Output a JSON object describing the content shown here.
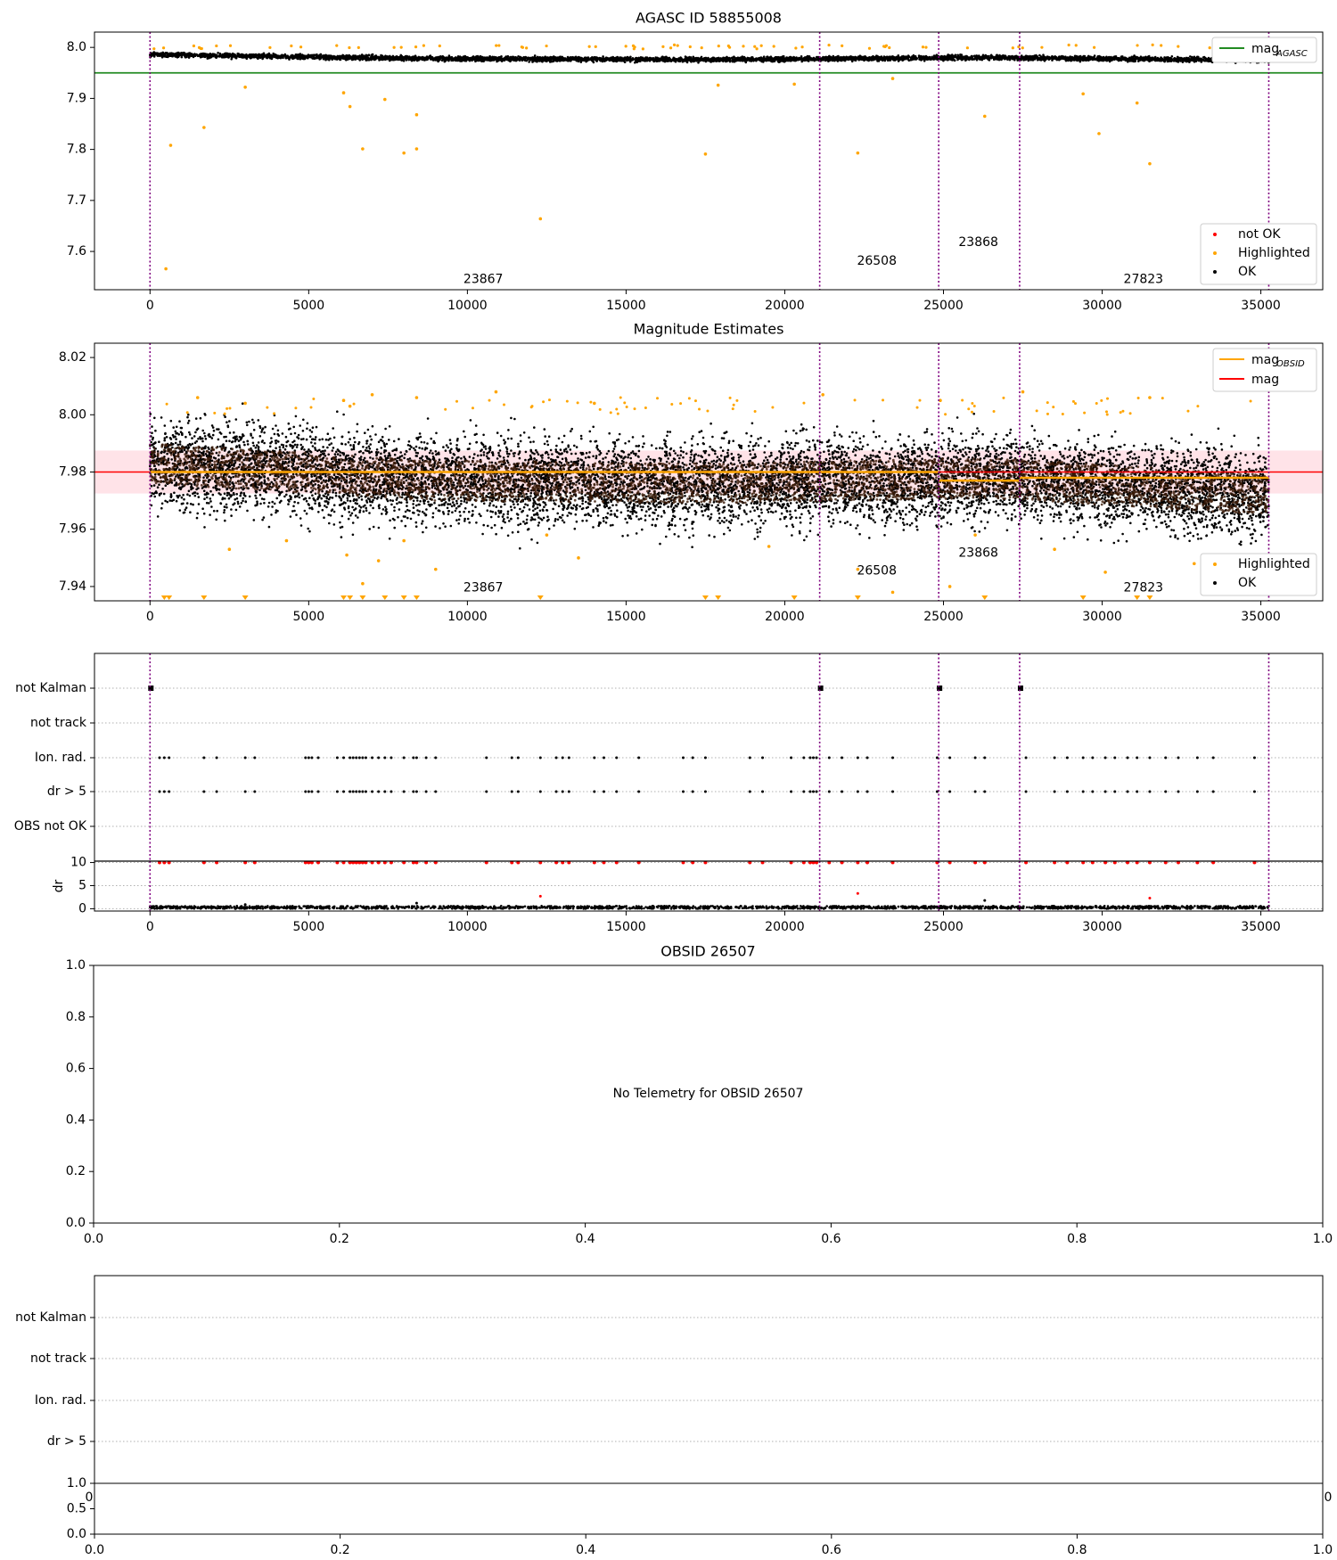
{
  "chart_data": [
    {
      "id": "agasc",
      "type": "scatter",
      "title": "AGASC ID 58855008",
      "xlim": [
        -1750,
        36950
      ],
      "ylim": [
        7.525,
        8.03
      ],
      "xticks": [
        0,
        5000,
        10000,
        15000,
        20000,
        25000,
        30000,
        35000,
        40000
      ],
      "yticks": [
        7.6,
        7.7,
        7.8,
        7.9,
        8.0
      ],
      "ytick_labels": [
        "7.6",
        "7.7",
        "7.8",
        "7.9",
        "8.0"
      ],
      "obs_boundaries": [
        0,
        21100,
        24850,
        27400,
        35250
      ],
      "obs_labels": [
        {
          "text": "23867",
          "x": 10500,
          "y": 7.545
        },
        {
          "text": "26508",
          "x": 22900,
          "y": 7.581
        },
        {
          "text": "23868",
          "x": 26100,
          "y": 7.618
        },
        {
          "text": "27823",
          "x": 31300,
          "y": 7.545
        }
      ],
      "hlines": [
        {
          "name": "mag_AGASC",
          "y": 7.95,
          "x0": -1750,
          "x1": 37050,
          "color": "#228b22"
        }
      ],
      "band": {
        "center": [
          7.986,
          7.978,
          7.976,
          7.98,
          7.975
        ],
        "halfwidth": 0.008
      },
      "segments": [
        [
          0,
          21100
        ],
        [
          21100,
          24850
        ],
        [
          24850,
          27400
        ],
        [
          27400,
          35250
        ]
      ],
      "highlighted": [
        [
          500,
          7.566
        ],
        [
          650,
          7.808
        ],
        [
          1700,
          7.843
        ],
        [
          3000,
          7.922
        ],
        [
          6100,
          7.911
        ],
        [
          6300,
          7.884
        ],
        [
          6700,
          7.801
        ],
        [
          7400,
          7.898
        ],
        [
          8000,
          7.793
        ],
        [
          8400,
          7.868
        ],
        [
          8400,
          7.801
        ],
        [
          12300,
          7.664
        ],
        [
          17500,
          7.791
        ],
        [
          17900,
          7.926
        ],
        [
          20300,
          7.928
        ],
        [
          22300,
          7.793
        ],
        [
          23400,
          7.939
        ],
        [
          26300,
          7.865
        ],
        [
          29400,
          7.909
        ],
        [
          29900,
          7.831
        ],
        [
          31100,
          7.891
        ],
        [
          31500,
          7.772
        ]
      ],
      "legend": [
        {
          "name": "mag",
          "sub": "AGASC",
          "kind": "line",
          "color": "#228b22"
        }
      ],
      "legend2": [
        {
          "name": "not OK",
          "kind": "dot",
          "color": "#ff0000"
        },
        {
          "name": "Highlighted",
          "kind": "dot",
          "color": "#ffa500"
        },
        {
          "name": "OK",
          "kind": "dot",
          "color": "#000000"
        }
      ]
    },
    {
      "id": "mag-estimates",
      "type": "scatter",
      "title": "Magnitude Estimates",
      "xlim": [
        -1750,
        36950
      ],
      "ylim": [
        7.935,
        8.025
      ],
      "xticks": [
        0,
        5000,
        10000,
        15000,
        20000,
        25000,
        30000,
        35000,
        40000
      ],
      "yticks": [
        7.94,
        7.96,
        7.98,
        8.0,
        8.02
      ],
      "ytick_labels": [
        "7.94",
        "7.96",
        "7.98",
        "8.00",
        "8.02"
      ],
      "obs_boundaries": [
        0,
        21100,
        24850,
        27400,
        35250
      ],
      "obs_labels": [
        {
          "text": "23867",
          "x": 10500,
          "y": 7.9395
        },
        {
          "text": "26508",
          "x": 22900,
          "y": 7.9455
        },
        {
          "text": "23868",
          "x": 26100,
          "y": 7.9517
        },
        {
          "text": "27823",
          "x": 31300,
          "y": 7.9395
        }
      ],
      "mag": 7.98,
      "mag_band": [
        7.9725,
        7.9875
      ],
      "mag_line_x": [
        -1750,
        37050
      ],
      "obsid_mags": [
        {
          "x0": 0,
          "x1": 24850,
          "y": 7.98
        },
        {
          "x0": 24850,
          "x1": 27400,
          "y": 7.977
        },
        {
          "x0": 27400,
          "x1": 35250,
          "y": 7.978
        }
      ],
      "highlighted": [
        [
          1500,
          8.006
        ],
        [
          3000,
          8.004
        ],
        [
          6100,
          8.005
        ],
        [
          6300,
          8.003
        ],
        [
          7000,
          8.007
        ],
        [
          8400,
          8.006
        ],
        [
          10900,
          8.008
        ],
        [
          14000,
          8.004
        ],
        [
          21200,
          8.007
        ],
        [
          24900,
          8.005
        ],
        [
          27500,
          8.008
        ],
        [
          31500,
          8.006
        ],
        [
          2500,
          7.953
        ],
        [
          4300,
          7.956
        ],
        [
          6200,
          7.951
        ],
        [
          6700,
          7.941
        ],
        [
          7200,
          7.949
        ],
        [
          8000,
          7.956
        ],
        [
          9000,
          7.946
        ],
        [
          12500,
          7.958
        ],
        [
          13500,
          7.95
        ],
        [
          19500,
          7.954
        ],
        [
          22300,
          7.946
        ],
        [
          23400,
          7.938
        ],
        [
          25200,
          7.94
        ],
        [
          26000,
          7.958
        ],
        [
          28500,
          7.953
        ],
        [
          30100,
          7.945
        ],
        [
          32900,
          7.948
        ],
        [
          34800,
          7.946
        ]
      ],
      "clipped_x": [
        450,
        600,
        1700,
        3000,
        6100,
        6300,
        6700,
        7400,
        8000,
        8400,
        12300,
        17500,
        17900,
        20300,
        22300,
        26300,
        29400,
        31100,
        31500
      ],
      "band": {
        "center": [
          7.983,
          7.977,
          7.976,
          7.978,
          7.972
        ],
        "halfwidth": 0.011
      },
      "segments": [
        [
          0,
          21100
        ],
        [
          21100,
          24850
        ],
        [
          24850,
          27400
        ],
        [
          27400,
          35250
        ]
      ],
      "legend": [
        {
          "name": "mag",
          "sub": "OBSID",
          "kind": "line",
          "color": "#ffa500"
        },
        {
          "name": "mag",
          "sub": "",
          "kind": "line",
          "color": "#ff0000"
        }
      ],
      "legend2": [
        {
          "name": "Highlighted",
          "kind": "dot",
          "color": "#ffa500"
        },
        {
          "name": "OK",
          "kind": "dot",
          "color": "#000000"
        }
      ]
    },
    {
      "id": "flags",
      "type": "scatter",
      "xlim": [
        -1750,
        36950
      ],
      "categories": [
        "not Kalman",
        "not track",
        "Ion. rad.",
        "dr > 5",
        "OBS not OK"
      ],
      "obs_boundaries": [
        0,
        21100,
        24850,
        27400,
        35250
      ],
      "not_kalman_x": [
        0,
        21100,
        24850,
        27400
      ],
      "event_x": [
        300,
        450,
        600,
        1700,
        2100,
        3000,
        3300,
        4900,
        5000,
        5100,
        5300,
        5900,
        6100,
        6300,
        6400,
        6500,
        6600,
        6700,
        6800,
        7000,
        7200,
        7400,
        7600,
        8000,
        8300,
        8400,
        8700,
        9000,
        10600,
        11400,
        11600,
        12300,
        12800,
        13000,
        13200,
        14000,
        14300,
        14700,
        15400,
        16800,
        17100,
        17500,
        18900,
        19300,
        20200,
        20600,
        20800,
        20900,
        21000,
        21400,
        21800,
        22300,
        22600,
        23400,
        24800,
        25200,
        26000,
        26300,
        27600,
        28500,
        28900,
        29400,
        29700,
        30100,
        30400,
        30800,
        31100,
        31500,
        32000,
        32400,
        33000,
        33500,
        34800
      ]
    },
    {
      "id": "dr",
      "type": "scatter",
      "xlim": [
        -1750,
        36950
      ],
      "ylim": [
        -0.5,
        10.3
      ],
      "ylabel": "dr",
      "yticks": [
        0,
        5,
        10
      ],
      "ytick_labels": [
        "0",
        "5",
        "10"
      ],
      "xticks": [
        0,
        5000,
        10000,
        15000,
        20000,
        25000,
        30000,
        35000,
        40000
      ],
      "obs_boundaries": [
        0,
        21100,
        24850,
        27400,
        35250
      ],
      "spikes": [
        [
          12300,
          2.7
        ],
        [
          22300,
          3.3
        ],
        [
          26300,
          1.8
        ],
        [
          31500,
          2.3
        ],
        [
          8400,
          1.2
        ],
        [
          3000,
          0.9
        ]
      ],
      "clipped_x": [
        300,
        450,
        600,
        1700,
        2100,
        3000,
        3300,
        4900,
        5000,
        5100,
        5300,
        5900,
        6100,
        6300,
        6400,
        6500,
        6600,
        6700,
        6800,
        7000,
        7200,
        7400,
        7600,
        8000,
        8300,
        8400,
        8700,
        9000,
        10600,
        11400,
        11600,
        12300,
        12800,
        13000,
        13200,
        14000,
        14300,
        14700,
        15400,
        16800,
        17100,
        17500,
        18900,
        19300,
        20200,
        20600,
        20800,
        20900,
        21000,
        21400,
        21800,
        22300,
        22600,
        23400,
        24800,
        25200,
        26000,
        26300,
        27600,
        28500,
        28900,
        29400,
        29700,
        30100,
        30400,
        30800,
        31100,
        31500,
        32000,
        32400,
        33000,
        33500,
        34800
      ]
    },
    {
      "id": "obsid-26507",
      "type": "scatter",
      "title": "OBSID 26507",
      "xlim": [
        0,
        1
      ],
      "ylim": [
        0,
        1
      ],
      "xticks": [
        0,
        0.2,
        0.4,
        0.6,
        0.8,
        1.0
      ],
      "xtick_labels": [
        "0.0",
        "0.2",
        "0.4",
        "0.6",
        "0.8",
        "1.0"
      ],
      "yticks": [
        0,
        0.2,
        0.4,
        0.6,
        0.8,
        1.0
      ],
      "ytick_labels": [
        "0.0",
        "0.2",
        "0.4",
        "0.6",
        "0.8",
        "1.0"
      ],
      "message": "No Telemetry for OBSID 26507"
    },
    {
      "id": "flags-empty",
      "type": "scatter",
      "categories": [
        "not Kalman",
        "not track",
        "Ion. rad.",
        "dr > 5"
      ]
    },
    {
      "id": "dr-empty",
      "type": "scatter",
      "xlim": [
        0,
        1
      ],
      "ylim": [
        0,
        1
      ],
      "xticks": [
        0,
        0.2,
        0.4,
        0.6,
        0.8,
        1.0
      ],
      "xtick_labels": [
        "0.0",
        "0.2",
        "0.4",
        "0.6",
        "0.8",
        "1.0"
      ],
      "yticks": [
        0,
        0.5,
        1.0
      ],
      "ytick_labels": [
        "0.0",
        "0.5",
        "1.0"
      ],
      "partial_labels": [
        "0",
        "0"
      ]
    }
  ]
}
